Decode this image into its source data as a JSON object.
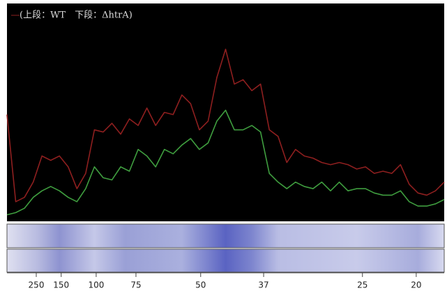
{
  "chart_data": {
    "type": "line",
    "legend_text": "(上段：WT　下段：ΔhtrA)",
    "x": [
      0,
      2,
      4,
      6,
      8,
      10,
      12,
      14,
      16,
      18,
      20,
      22,
      24,
      26,
      28,
      30,
      32,
      34,
      36,
      38,
      40,
      42,
      44,
      46,
      48,
      50,
      52,
      54,
      56,
      58,
      60,
      62,
      64,
      66,
      68,
      70,
      72,
      74,
      76,
      78,
      80,
      82,
      84,
      86,
      88,
      90,
      92,
      94,
      96,
      98,
      100
    ],
    "series": [
      {
        "color": "#8e1f1f",
        "values": [
          49,
          9,
          11,
          18,
          30,
          28,
          30,
          25,
          15,
          22,
          42,
          41,
          45,
          40,
          47,
          44,
          52,
          44,
          50,
          49,
          58,
          54,
          42,
          46,
          66,
          79,
          63,
          65,
          60,
          63,
          42,
          39,
          27,
          33,
          30,
          29,
          27,
          26,
          27,
          26,
          24,
          25,
          22,
          23,
          22,
          26,
          17,
          13,
          12,
          14,
          18
        ]
      },
      {
        "color": "#3f9e3f",
        "values": [
          3,
          4,
          6,
          11,
          14,
          16,
          14,
          11,
          9,
          15,
          25,
          20,
          19,
          25,
          23,
          33,
          30,
          25,
          33,
          31,
          35,
          38,
          33,
          36,
          46,
          51,
          42,
          42,
          44,
          41,
          22,
          18,
          15,
          18,
          16,
          15,
          18,
          14,
          18,
          14,
          15,
          15,
          13,
          12,
          12,
          14,
          9,
          7,
          7,
          8,
          10
        ]
      }
    ],
    "xlim": [
      0,
      100
    ],
    "ylim": [
      0,
      100
    ],
    "xticks": [
      {
        "value": 6.7,
        "label": "250"
      },
      {
        "value": 12.4,
        "label": "150"
      },
      {
        "value": 20.4,
        "label": "100"
      },
      {
        "value": 29.5,
        "label": "75"
      },
      {
        "value": 44.3,
        "label": "50"
      },
      {
        "value": 58.7,
        "label": "37"
      },
      {
        "value": 81.3,
        "label": "25"
      },
      {
        "value": 93.6,
        "label": "20"
      }
    ]
  }
}
